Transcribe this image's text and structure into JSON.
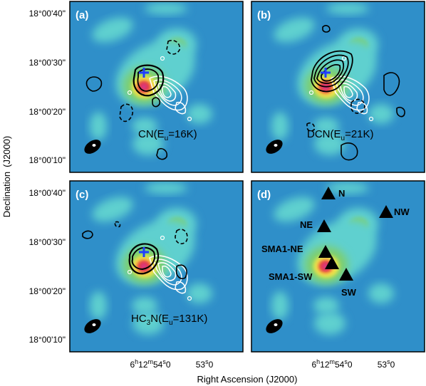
{
  "chart_data": {
    "type": "heatmap",
    "xlabel": "Right Ascension (J2000)",
    "ylabel": "Declination",
    "ylabel_suffix": "(J2000)",
    "x_ticks": [
      {
        "h": "6",
        "m": "12",
        "s": "54",
        "frac": "0"
      },
      {
        "h": "",
        "m": "",
        "s": "53",
        "frac": "0"
      }
    ],
    "y_ticks": [
      "18°00'40\"",
      "18°00'30\"",
      "18°00'20\"",
      "18°00'10\""
    ],
    "colors": {
      "background": "#2f8fc9",
      "emission_cyan": "#5fd0cf",
      "emission_green": "#7fcf6a",
      "peak_yellow": "#f3e84a",
      "peak_red": "#e8323a",
      "peak_magenta": "#d43a8f",
      "marker_plus": "#1f3dff"
    },
    "panels": [
      {
        "tag": "(a)",
        "line_label": {
          "pre": "CN(E",
          "sub": "u",
          "post": "=16K)"
        }
      },
      {
        "tag": "(b)",
        "line_label": {
          "pre": "DCN(E",
          "sub": "u",
          "post": "=21K)"
        }
      },
      {
        "tag": "(c)",
        "line_label": {
          "pre": "HC",
          "sub": "3",
          "mid": "N(E",
          "sub2": "u",
          "post": "=131K)"
        }
      },
      {
        "tag": "(d)",
        "markers": [
          "N",
          "NE",
          "NW",
          "SMA1-NE",
          "SMA1-SW",
          "SW"
        ]
      }
    ]
  }
}
